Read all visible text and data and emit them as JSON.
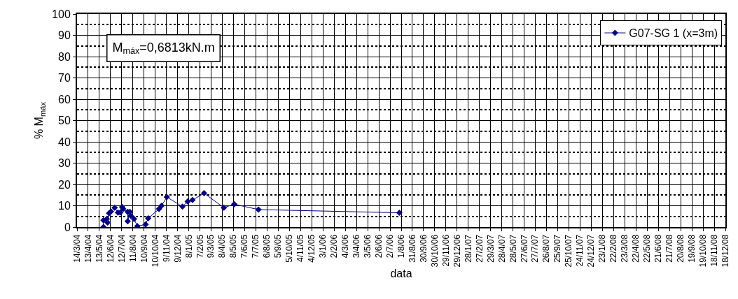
{
  "chart_data": {
    "type": "line",
    "xlabel": "data",
    "ylabel": "% M$_{máx}$",
    "annotations": [
      "M$_{máx}$=0,6813kN.m"
    ],
    "x": [
      "2004-05-24",
      "2004-05-24",
      "2004-06-02",
      "2004-06-04",
      "2004-06-08",
      "2004-06-13",
      "2004-06-23",
      "2004-07-02",
      "2004-07-08",
      "2004-07-13",
      "2004-07-16",
      "2004-07-28",
      "2004-07-28",
      "2004-08-03",
      "2004-08-05",
      "2004-08-14",
      "2004-08-23",
      "2004-09-14",
      "2004-09-21",
      "2004-10-20",
      "2004-10-27",
      "2004-11-10",
      "2004-12-22",
      "2005-01-05",
      "2005-01-18",
      "2005-02-18",
      "2005-04-12",
      "2005-05-10",
      "2005-07-14",
      "2006-07-27"
    ],
    "series": [
      {
        "name": "G07-SG 1 (x=3m)",
        "color": "#000080",
        "values": [
          0,
          3.2,
          3.8,
          2.1,
          6.5,
          7.3,
          9.1,
          6.8,
          6.8,
          9.4,
          8.5,
          7.1,
          2.7,
          7.1,
          5.3,
          3.8,
          0.4,
          1.2,
          4.1,
          8.5,
          10,
          14.1,
          9.6,
          12,
          12.7,
          15.9,
          9.1,
          10.7,
          8.2,
          6.7
        ]
      }
    ],
    "marker": "diamond",
    "line_style": "solid",
    "legend": "top right",
    "grid": true,
    "ylim": [
      0,
      100
    ],
    "yticks": [
      0,
      10,
      20,
      30,
      40,
      50,
      60,
      70,
      80,
      90,
      100
    ],
    "xlim": [
      "2004-03-14",
      "2008-12-18"
    ],
    "xticks": [
      {
        "value": "2004-03-14",
        "label": "14/3/04"
      },
      {
        "value": "2004-04-13",
        "label": "13/4/04"
      },
      {
        "value": "2004-05-13",
        "label": "13/5/04"
      },
      {
        "value": "2004-06-12",
        "label": "12/6/04"
      },
      {
        "value": "2004-07-12",
        "label": "12/7/04"
      },
      {
        "value": "2004-08-11",
        "label": "11/8/04"
      },
      {
        "value": "2004-09-10",
        "label": "10/9/04"
      },
      {
        "value": "2004-10-10",
        "label": "10/10/04"
      },
      {
        "value": "2004-11-09",
        "label": "9/11/04"
      },
      {
        "value": "2004-12-09",
        "label": "9/12/04"
      },
      {
        "value": "2005-01-08",
        "label": "8/1/05"
      },
      {
        "value": "2005-02-07",
        "label": "7/2/05"
      },
      {
        "value": "2005-03-09",
        "label": "9/3/05"
      },
      {
        "value": "2005-04-08",
        "label": "8/4/05"
      },
      {
        "value": "2005-05-08",
        "label": "8/5/05"
      },
      {
        "value": "2005-06-07",
        "label": "7/6/05"
      },
      {
        "value": "2005-07-07",
        "label": "7/7/05"
      },
      {
        "value": "2005-08-06",
        "label": "6/8/05"
      },
      {
        "value": "2005-09-05",
        "label": "5/9/05"
      },
      {
        "value": "2005-10-05",
        "label": "5/10/05"
      },
      {
        "value": "2005-11-04",
        "label": "4/11/05"
      },
      {
        "value": "2005-12-04",
        "label": "4/12/05"
      },
      {
        "value": "2006-01-03",
        "label": "3/1/06"
      },
      {
        "value": "2006-02-02",
        "label": "2/2/06"
      },
      {
        "value": "2006-03-04",
        "label": "4/3/06"
      },
      {
        "value": "2006-04-03",
        "label": "3/4/06"
      },
      {
        "value": "2006-05-03",
        "label": "3/5/06"
      },
      {
        "value": "2006-06-02",
        "label": "2/6/06"
      },
      {
        "value": "2006-07-02",
        "label": "2/7/06"
      },
      {
        "value": "2006-08-01",
        "label": "1/8/06"
      },
      {
        "value": "2006-08-31",
        "label": "31/8/06"
      },
      {
        "value": "2006-09-30",
        "label": "30/9/06"
      },
      {
        "value": "2006-10-30",
        "label": "30/10/06"
      },
      {
        "value": "2006-11-29",
        "label": "29/11/06"
      },
      {
        "value": "2006-12-29",
        "label": "29/12/06"
      },
      {
        "value": "2007-01-28",
        "label": "28/1/07"
      },
      {
        "value": "2007-02-27",
        "label": "27/2/07"
      },
      {
        "value": "2007-03-29",
        "label": "29/3/07"
      },
      {
        "value": "2007-04-28",
        "label": "28/4/07"
      },
      {
        "value": "2007-05-28",
        "label": "28/5/07"
      },
      {
        "value": "2007-06-27",
        "label": "27/6/07"
      },
      {
        "value": "2007-07-27",
        "label": "27/7/07"
      },
      {
        "value": "2007-08-26",
        "label": "26/8/07"
      },
      {
        "value": "2007-09-25",
        "label": "25/9/07"
      },
      {
        "value": "2007-10-25",
        "label": "25/10/07"
      },
      {
        "value": "2007-11-24",
        "label": "24/11/07"
      },
      {
        "value": "2007-12-24",
        "label": "24/12/07"
      },
      {
        "value": "2008-01-23",
        "label": "23/1/08"
      },
      {
        "value": "2008-02-22",
        "label": "22/2/08"
      },
      {
        "value": "2008-03-23",
        "label": "23/3/08"
      },
      {
        "value": "2008-04-22",
        "label": "22/4/08"
      },
      {
        "value": "2008-05-22",
        "label": "22/5/08"
      },
      {
        "value": "2008-06-21",
        "label": "21/6/08"
      },
      {
        "value": "2008-07-21",
        "label": "21/7/08"
      },
      {
        "value": "2008-08-20",
        "label": "20/8/08"
      },
      {
        "value": "2008-09-19",
        "label": "19/9/08"
      },
      {
        "value": "2008-10-19",
        "label": "19/10/08"
      },
      {
        "value": "2008-11-18",
        "label": "18/11/08"
      },
      {
        "value": "2008-12-18",
        "label": "18/12/08"
      }
    ]
  }
}
